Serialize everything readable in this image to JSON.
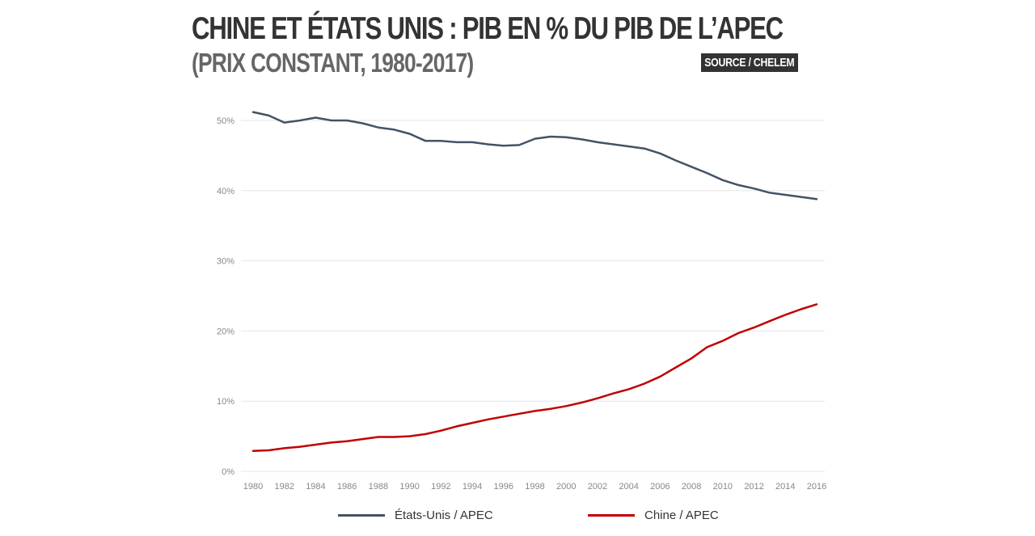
{
  "header": {
    "title": "CHINE ET ÉTATS UNIS :  PIB EN % DU PIB DE L’APEC",
    "subtitle": "(PRIX CONSTANT, 1980-2017)",
    "source": "SOURCE / CHELEM"
  },
  "colors": {
    "us": "#435366",
    "china": "#c00000",
    "grid": "#e6e6e6",
    "tick_text": "#888888"
  },
  "chart_data": {
    "type": "line",
    "title": "CHINE ET ÉTATS UNIS :  PIB EN % DU PIB DE L’APEC",
    "subtitle": "(PRIX CONSTANT, 1980-2017)",
    "xlabel": "",
    "ylabel": "",
    "xlim": [
      1980,
      2016
    ],
    "ylim": [
      0,
      50
    ],
    "yticks": [
      0,
      10,
      20,
      30,
      40,
      50
    ],
    "ytick_labels": [
      "0%",
      "10%",
      "20%",
      "30%",
      "40%",
      "50%"
    ],
    "xticks": [
      1980,
      1982,
      1984,
      1986,
      1988,
      1990,
      1992,
      1994,
      1996,
      1998,
      2000,
      2002,
      2004,
      2006,
      2008,
      2010,
      2012,
      2014,
      2016
    ],
    "xtick_labels": [
      "1980",
      "1982",
      "1984",
      "1986",
      "1988",
      "1990",
      "1992",
      "1994",
      "1996",
      "1998",
      "2000",
      "2002",
      "2004",
      "2006",
      "2008",
      "2010",
      "2012",
      "2014",
      "2016"
    ],
    "grid": true,
    "legend_position": "bottom",
    "x": [
      1980,
      1981,
      1982,
      1983,
      1984,
      1985,
      1986,
      1987,
      1988,
      1989,
      1990,
      1991,
      1992,
      1993,
      1994,
      1995,
      1996,
      1997,
      1998,
      1999,
      2000,
      2001,
      2002,
      2003,
      2004,
      2005,
      2006,
      2007,
      2008,
      2009,
      2010,
      2011,
      2012,
      2013,
      2014,
      2015,
      2016
    ],
    "series": [
      {
        "key": "us",
        "name": "États-Unis / APEC",
        "color": "#435366",
        "values": [
          51.2,
          50.7,
          49.7,
          50.0,
          50.4,
          50.0,
          50.0,
          49.6,
          49.0,
          48.7,
          48.1,
          47.1,
          47.1,
          46.9,
          46.9,
          46.6,
          46.4,
          46.5,
          47.4,
          47.7,
          47.6,
          47.3,
          46.9,
          46.6,
          46.3,
          46.0,
          45.3,
          44.3,
          43.4,
          42.5,
          41.5,
          40.8,
          40.3,
          39.7,
          39.4,
          39.1,
          38.8
        ]
      },
      {
        "key": "china",
        "name": "Chine / APEC",
        "color": "#c00000",
        "values": [
          2.9,
          3.0,
          3.3,
          3.5,
          3.8,
          4.1,
          4.3,
          4.6,
          4.9,
          4.9,
          5.0,
          5.3,
          5.8,
          6.4,
          6.9,
          7.4,
          7.8,
          8.2,
          8.6,
          8.9,
          9.3,
          9.8,
          10.4,
          11.1,
          11.7,
          12.5,
          13.5,
          14.8,
          16.1,
          17.7,
          18.6,
          19.7,
          20.5,
          21.4,
          22.3,
          23.1,
          23.8
        ]
      }
    ]
  }
}
